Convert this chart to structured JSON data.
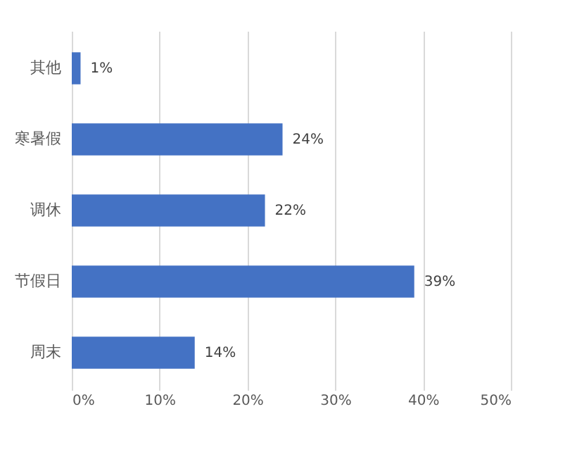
{
  "chart_data": {
    "type": "bar",
    "orientation": "horizontal",
    "categories": [
      "其他",
      "寒暑假",
      "调休",
      "节假日",
      "周末"
    ],
    "values": [
      1,
      24,
      22,
      39,
      14
    ],
    "value_labels": [
      "1%",
      "24%",
      "22%",
      "39%",
      "14%"
    ],
    "color": "#4472c4",
    "xlim": [
      0,
      50
    ],
    "xticks": [
      {
        "value": 0,
        "label": "0%"
      },
      {
        "value": 10,
        "label": "10%"
      },
      {
        "value": 20,
        "label": "20%"
      },
      {
        "value": 30,
        "label": "30%"
      },
      {
        "value": 40,
        "label": "40%"
      },
      {
        "value": 50,
        "label": "50%"
      }
    ],
    "grid": "x"
  }
}
